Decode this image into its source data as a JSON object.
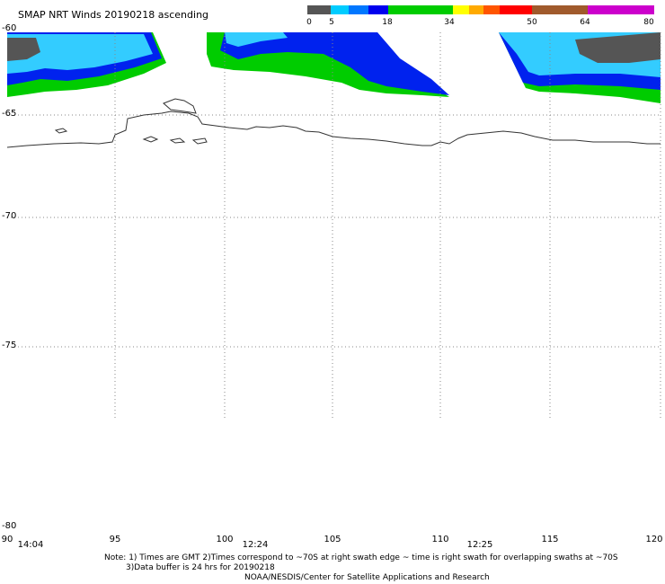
{
  "header": {
    "title": "SMAP NRT Winds 20190218 ascending"
  },
  "colorbar": {
    "segments": [
      {
        "from": 0,
        "to": 5,
        "color": "#555555"
      },
      {
        "from": 5,
        "to": 18,
        "color": "#00aaff"
      },
      {
        "from": 18,
        "to": 34,
        "color": "#00cc00"
      },
      {
        "from": 34,
        "to": 50,
        "color": "#ff6600"
      },
      {
        "from": 50,
        "to": 64,
        "color": "#8b4513"
      },
      {
        "from": 64,
        "to": 80,
        "color": "#cc00cc"
      }
    ],
    "labels": [
      "0",
      "5",
      "18",
      "34",
      "50",
      "64",
      "80"
    ]
  },
  "axes": {
    "lat_labels": [
      "-60",
      "-65",
      "-70",
      "-75",
      "-80"
    ],
    "lon_labels": [
      "90",
      "95",
      "100",
      "105",
      "110",
      "115",
      "120"
    ],
    "time_labels": [
      "14:04",
      "12:24",
      "12:25"
    ]
  },
  "notes": {
    "line1": "Note: 1) Times are GMT 2)Times correspond to ~70S at right swath edge ~ time is right swath for overlapping swaths at ~70S",
    "line2": "3)Data buffer is 24 hrs for 20190218",
    "line3": "NOAA/NESDIS/Center for Satellite Applications and Research"
  }
}
